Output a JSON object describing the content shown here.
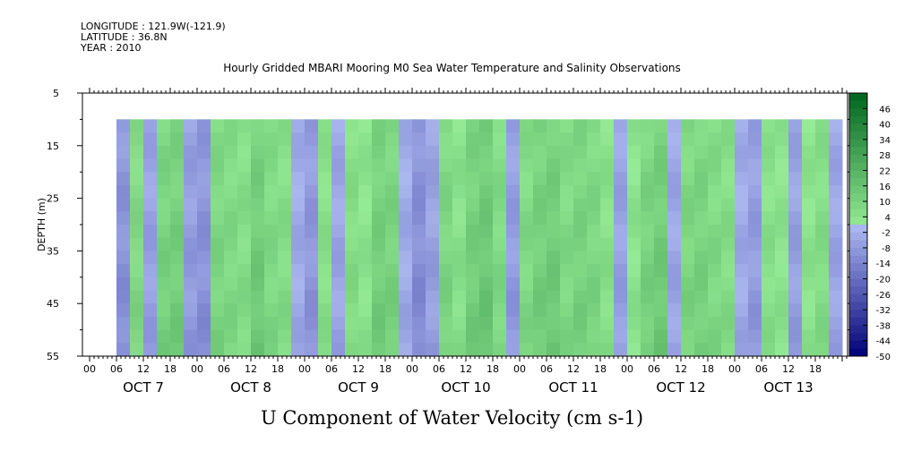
{
  "header": {
    "longitude": "LONGITUDE : 121.9W(-121.9)",
    "latitude": "LATITUDE : 36.8N",
    "year": "YEAR : 2010"
  },
  "chart_data": {
    "type": "heatmap",
    "title": "Hourly Gridded MBARI Mooring M0 Sea Water Temperature and Salinity Observations",
    "subtitle": "U Component of Water Velocity (cm s-1)",
    "ylabel": "DEPTH (m)",
    "xlabel": "",
    "ylim": [
      5,
      55
    ],
    "y_inverted": true,
    "y_ticks": [
      5,
      15,
      25,
      35,
      45,
      55
    ],
    "x_hour_labels": [
      "00",
      "06",
      "12",
      "18",
      "00",
      "06",
      "12",
      "18",
      "00",
      "06",
      "12",
      "18",
      "00",
      "06",
      "12",
      "18",
      "00",
      "06",
      "12",
      "18",
      "00",
      "06",
      "12",
      "18",
      "00",
      "06",
      "12",
      "18"
    ],
    "x_day_labels": [
      "OCT  7",
      "OCT  8",
      "OCT  9",
      "OCT 10",
      "OCT 11",
      "OCT 12",
      "OCT 13"
    ],
    "data_extent": {
      "start": "Oct 7 06:00",
      "end": "Oct 13 23:00",
      "depth_min": 10,
      "depth_max": 55
    },
    "colorbar": {
      "labels": [
        46,
        40,
        34,
        28,
        22,
        16,
        10,
        4,
        -2,
        -8,
        -14,
        -20,
        -26,
        -32,
        -38,
        -44,
        -50
      ],
      "min": -50,
      "max": 52,
      "step": 3
    },
    "column_profile": [
      {
        "day": 7,
        "hour": 6,
        "u": -8
      },
      {
        "day": 7,
        "hour": 9,
        "u": 6
      },
      {
        "day": 7,
        "hour": 12,
        "u": -5
      },
      {
        "day": 7,
        "hour": 15,
        "u": 8
      },
      {
        "day": 7,
        "hour": 18,
        "u": 9
      },
      {
        "day": 7,
        "hour": 21,
        "u": -6
      },
      {
        "day": 8,
        "hour": 0,
        "u": -8
      },
      {
        "day": 8,
        "hour": 3,
        "u": 7
      },
      {
        "day": 8,
        "hour": 6,
        "u": 6
      },
      {
        "day": 8,
        "hour": 9,
        "u": 5
      },
      {
        "day": 8,
        "hour": 12,
        "u": 10
      },
      {
        "day": 8,
        "hour": 15,
        "u": 6
      },
      {
        "day": 8,
        "hour": 18,
        "u": 5
      },
      {
        "day": 8,
        "hour": 21,
        "u": -3
      },
      {
        "day": 9,
        "hour": 0,
        "u": -7
      },
      {
        "day": 9,
        "hour": 3,
        "u": 4
      },
      {
        "day": 9,
        "hour": 6,
        "u": -4
      },
      {
        "day": 9,
        "hour": 9,
        "u": 5
      },
      {
        "day": 9,
        "hour": 12,
        "u": 3
      },
      {
        "day": 9,
        "hour": 15,
        "u": 9
      },
      {
        "day": 9,
        "hour": 18,
        "u": 8
      },
      {
        "day": 9,
        "hour": 21,
        "u": -3
      },
      {
        "day": 10,
        "hour": 0,
        "u": -9
      },
      {
        "day": 10,
        "hour": 3,
        "u": -5
      },
      {
        "day": 10,
        "hour": 6,
        "u": 7
      },
      {
        "day": 10,
        "hour": 9,
        "u": 4
      },
      {
        "day": 10,
        "hour": 12,
        "u": 9
      },
      {
        "day": 10,
        "hour": 15,
        "u": 11
      },
      {
        "day": 10,
        "hour": 18,
        "u": 6
      },
      {
        "day": 10,
        "hour": 21,
        "u": -6
      },
      {
        "day": 11,
        "hour": 0,
        "u": 6
      },
      {
        "day": 11,
        "hour": 3,
        "u": 9
      },
      {
        "day": 11,
        "hour": 6,
        "u": 10
      },
      {
        "day": 11,
        "hour": 9,
        "u": 6
      },
      {
        "day": 11,
        "hour": 12,
        "u": 8
      },
      {
        "day": 11,
        "hour": 15,
        "u": 7
      },
      {
        "day": 11,
        "hour": 18,
        "u": 4
      },
      {
        "day": 11,
        "hour": 21,
        "u": -5
      },
      {
        "day": 12,
        "hour": 0,
        "u": 3
      },
      {
        "day": 12,
        "hour": 3,
        "u": 8
      },
      {
        "day": 12,
        "hour": 6,
        "u": 10
      },
      {
        "day": 12,
        "hour": 9,
        "u": -4
      },
      {
        "day": 12,
        "hour": 12,
        "u": 7
      },
      {
        "day": 12,
        "hour": 15,
        "u": 8
      },
      {
        "day": 12,
        "hour": 18,
        "u": 6
      },
      {
        "day": 12,
        "hour": 21,
        "u": 5
      },
      {
        "day": 13,
        "hour": 0,
        "u": -3
      },
      {
        "day": 13,
        "hour": 3,
        "u": -6
      },
      {
        "day": 13,
        "hour": 6,
        "u": 4
      },
      {
        "day": 13,
        "hour": 9,
        "u": 3
      },
      {
        "day": 13,
        "hour": 12,
        "u": -5
      },
      {
        "day": 13,
        "hour": 15,
        "u": 3
      },
      {
        "day": 13,
        "hour": 18,
        "u": 5
      },
      {
        "day": 13,
        "hour": 21,
        "u": -4
      }
    ]
  }
}
